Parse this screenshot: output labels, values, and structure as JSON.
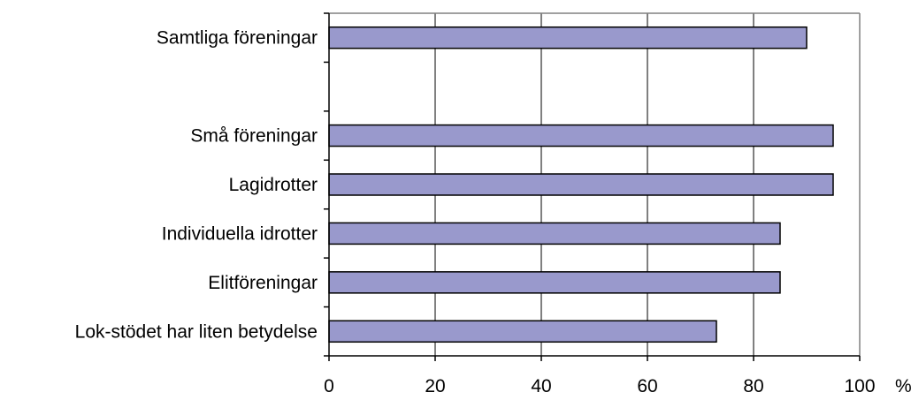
{
  "chart_data": {
    "type": "bar",
    "orientation": "horizontal",
    "categories": [
      "Samtliga föreningar",
      "",
      "Små föreningar",
      "Lagidrotter",
      "Individuella idrotter",
      "Elitföreningar",
      "Lok-stödet har liten betydelse"
    ],
    "values": [
      90,
      null,
      95,
      95,
      85,
      85,
      73
    ],
    "xlim": [
      0,
      100
    ],
    "xticks": [
      "0",
      "20",
      "40",
      "60",
      "80",
      "100"
    ],
    "x_unit": "%",
    "grid": "vertical",
    "legend": "none",
    "colors": {
      "bar_fill": "#9999cc",
      "bar_stroke": "#000000",
      "grid": "#000000",
      "frame": "#808080",
      "background": "#ffffff"
    }
  }
}
